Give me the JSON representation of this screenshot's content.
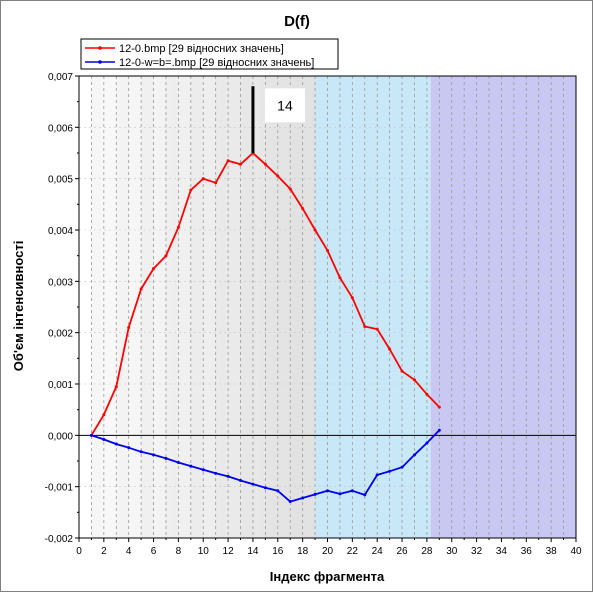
{
  "chart_data": {
    "type": "line",
    "title": "D(f)",
    "xlabel": "Індекс фрагмента",
    "ylabel": "Об'єм інтенсивності",
    "xlim": [
      0,
      40
    ],
    "ylim": [
      -0.002,
      0.007
    ],
    "x_ticks": [
      0,
      2,
      4,
      6,
      8,
      10,
      12,
      14,
      16,
      18,
      20,
      22,
      24,
      26,
      28,
      30,
      32,
      34,
      36,
      38,
      40
    ],
    "y_ticks": [
      -0.002,
      -0.001,
      0.0,
      0.001,
      0.002,
      0.003,
      0.004,
      0.005,
      0.006,
      0.007
    ],
    "y_tick_labels": [
      "-0,002",
      "-0,001",
      "0,000",
      "0,001",
      "0,002",
      "0,003",
      "0,004",
      "0,005",
      "0,006",
      "0,007"
    ],
    "grid": true,
    "legend_position": "top-left",
    "regions": [
      {
        "from": 1,
        "to": 19,
        "color": "#e6e6e6",
        "style": "gradient-gray"
      },
      {
        "from": 19,
        "to": 28.3,
        "color": "#c8e8f8"
      },
      {
        "from": 28.3,
        "to": 40,
        "color": "#c8c8f2"
      }
    ],
    "marker": {
      "x": 14,
      "label": "14",
      "y_top": 0.0068,
      "y_bottom": 0.0055
    },
    "series": [
      {
        "name": "12-0.bmp [29 відносних значень]",
        "color": "#ff0000",
        "x": [
          1,
          2,
          3,
          4,
          5,
          6,
          7,
          8,
          9,
          10,
          11,
          12,
          13,
          14,
          15,
          16,
          17,
          18,
          19,
          20,
          21,
          22,
          23,
          24,
          25,
          26,
          27,
          28,
          29
        ],
        "values": [
          0.0,
          0.0004,
          0.00095,
          0.0021,
          0.00285,
          0.00325,
          0.0035,
          0.00405,
          0.00478,
          0.005,
          0.00492,
          0.00535,
          0.00528,
          0.0055,
          0.00528,
          0.00505,
          0.0048,
          0.00442,
          0.004,
          0.0036,
          0.00307,
          0.00268,
          0.00212,
          0.00207,
          0.00168,
          0.00125,
          0.00108,
          0.0008,
          0.00055
        ]
      },
      {
        "name": "12-0-w=b=.bmp [29 відносних значень]",
        "color": "#0000ee",
        "x": [
          1,
          2,
          3,
          4,
          5,
          6,
          7,
          8,
          9,
          10,
          11,
          12,
          13,
          14,
          15,
          16,
          17,
          18,
          19,
          20,
          21,
          22,
          23,
          24,
          25,
          26,
          27,
          28,
          29
        ],
        "values": [
          0.0,
          -8e-05,
          -0.00017,
          -0.00024,
          -0.00032,
          -0.00038,
          -0.00045,
          -0.00053,
          -0.0006,
          -0.00067,
          -0.00074,
          -0.0008,
          -0.00088,
          -0.00095,
          -0.00102,
          -0.00108,
          -0.00129,
          -0.00122,
          -0.00115,
          -0.00108,
          -0.00114,
          -0.00108,
          -0.00116,
          -0.00077,
          -0.0007,
          -0.00062,
          -0.00038,
          -0.00015,
          0.0001
        ]
      }
    ]
  }
}
